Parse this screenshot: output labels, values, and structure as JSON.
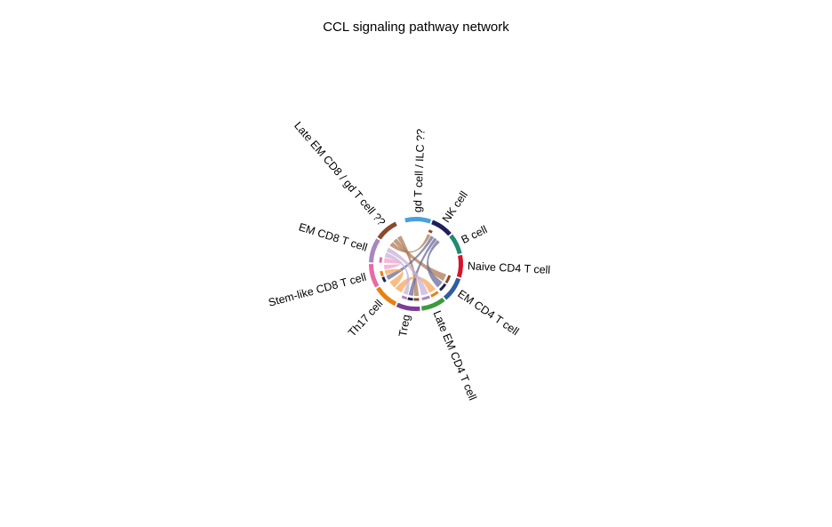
{
  "title": "CCL signaling pathway network",
  "chart_data": {
    "type": "chord",
    "sectors": [
      {
        "name": "gd T cell / ILC ??",
        "color": "#4aa0dc"
      },
      {
        "name": "NK cell",
        "color": "#1f1f5e"
      },
      {
        "name": "B cell",
        "color": "#1d8c6f"
      },
      {
        "name": "Naive CD4 T cell",
        "color": "#d7122a"
      },
      {
        "name": "EM CD4 T cell",
        "color": "#2f5e9e"
      },
      {
        "name": "Late EM CD4 T cell",
        "color": "#3c9a3c"
      },
      {
        "name": "Treg",
        "color": "#7d3c98"
      },
      {
        "name": "Th17 cell",
        "color": "#e8800f"
      },
      {
        "name": "Stem-like CD8 T cell",
        "color": "#e86aa6"
      },
      {
        "name": "EM CD8 T cell",
        "color": "#a887bd"
      },
      {
        "name": "Late EM CD8 / gd T cell ??",
        "color": "#8b4a2b"
      }
    ],
    "links": [
      {
        "from": "Late EM CD8 / gd T cell ??",
        "to": "NK cell",
        "color": "#b07a55"
      },
      {
        "from": "Late EM CD8 / gd T cell ??",
        "to": "EM CD4 T cell",
        "color": "#b07a55"
      },
      {
        "from": "Late EM CD8 / gd T cell ??",
        "to": "Treg",
        "color": "#b07a55"
      },
      {
        "from": "NK cell",
        "to": "Stem-like CD8 T cell",
        "color": "#6a6a9a"
      },
      {
        "from": "NK cell",
        "to": "Treg",
        "color": "#6a6a9a"
      },
      {
        "from": "NK cell",
        "to": "EM CD4 T cell",
        "color": "#6a6a9a"
      },
      {
        "from": "Th17 cell",
        "to": "Late EM CD4 T cell",
        "color": "#f5a65b"
      },
      {
        "from": "Th17 cell",
        "to": "Stem-like CD8 T cell",
        "color": "#f5a65b"
      },
      {
        "from": "Stem-like CD8 T cell",
        "to": "EM CD8 T cell",
        "color": "#f2a2c8"
      },
      {
        "from": "EM CD8 T cell",
        "to": "Treg",
        "color": "#c8b0d8"
      },
      {
        "from": "EM CD8 T cell",
        "to": "Late EM CD4 T cell",
        "color": "#c8b0d8"
      }
    ]
  }
}
